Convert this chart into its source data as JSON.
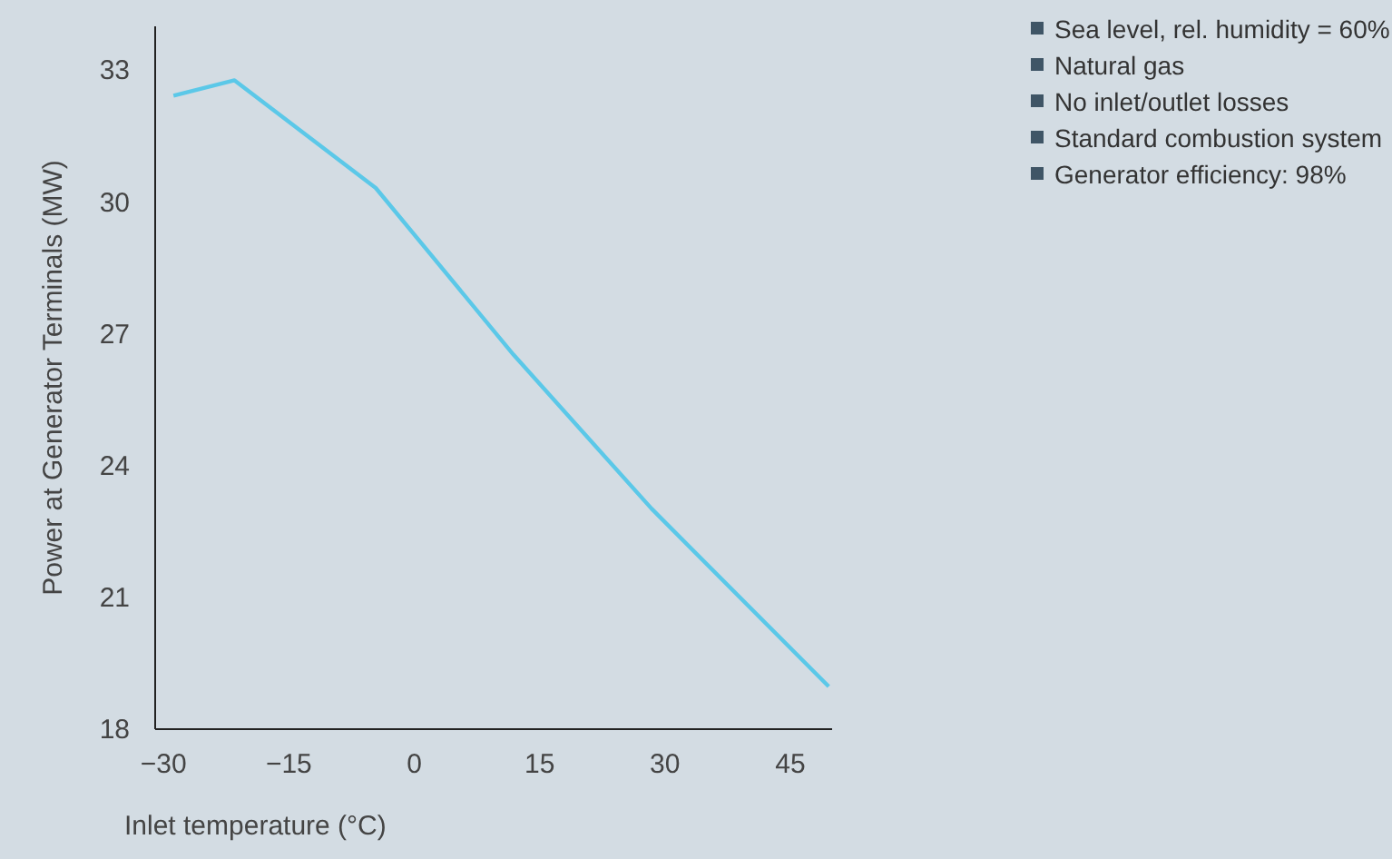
{
  "chart_data": {
    "type": "line",
    "xlabel": "Inlet temperature (°C)",
    "ylabel": "Power at Generator Terminals (MW)",
    "x": [
      -28.7,
      -21.4,
      -4.5,
      12,
      28.5,
      49.7
    ],
    "series": [
      {
        "color": "#5bc8e8",
        "values": [
          32.4,
          32.75,
          30.3,
          26.5,
          23.0,
          18.95
        ]
      }
    ],
    "xlim": [
      -31,
      50
    ],
    "xticks": [
      -30,
      -15,
      0,
      15,
      30,
      45
    ],
    "ylim": [
      18,
      34
    ],
    "yticks": [
      18,
      21,
      24,
      27,
      30,
      33
    ],
    "grid": false,
    "marker": "none",
    "line_style": "solid",
    "annotations": [
      "Sea level, rel. humidity = 60%",
      "Natural gas",
      "No inlet/outlet losses",
      "Standard combustion system",
      "Generator efficiency: 98%"
    ]
  }
}
